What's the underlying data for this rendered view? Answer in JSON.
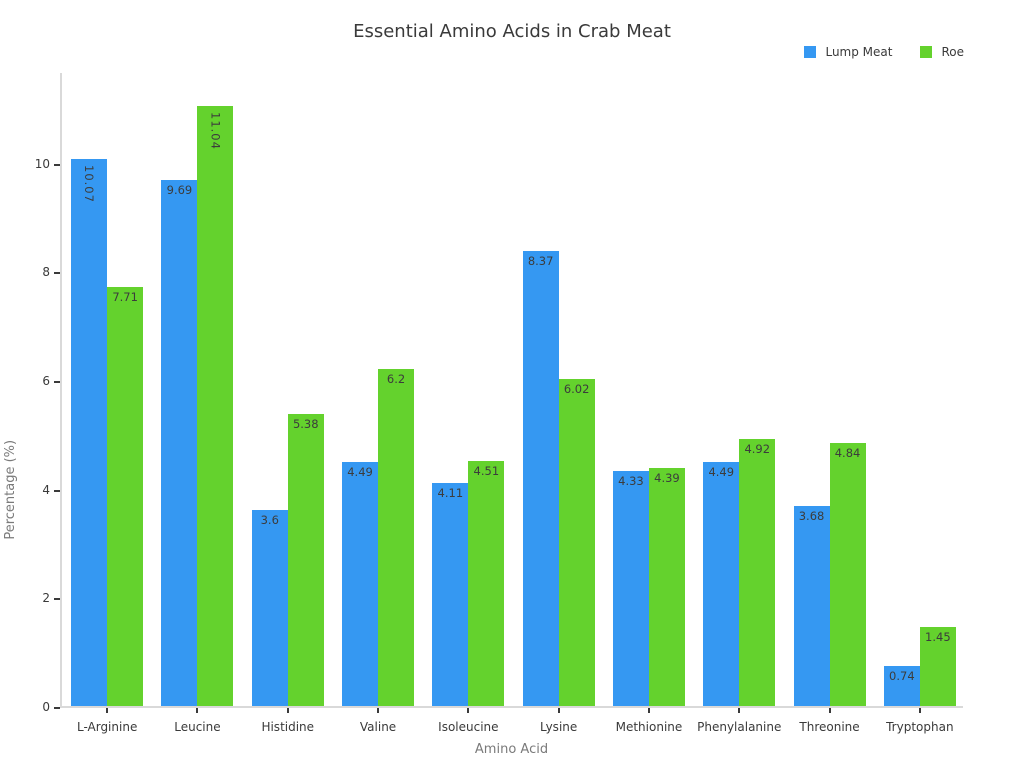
{
  "chart_data": {
    "type": "bar",
    "title": "Essential Amino Acids in Crab Meat",
    "xlabel": "Amino Acid",
    "ylabel": "Percentage (%)",
    "categories": [
      "L-Arginine",
      "Leucine",
      "Histidine",
      "Valine",
      "Isoleucine",
      "Lysine",
      "Methionine",
      "Phenylalanine",
      "Threonine",
      "Tryptophan"
    ],
    "series": [
      {
        "name": "Lump Meat",
        "color": "#3598f2",
        "values": [
          10.07,
          9.69,
          3.6,
          4.49,
          4.11,
          8.37,
          4.33,
          4.49,
          3.68,
          0.74
        ]
      },
      {
        "name": "Roe",
        "color": "#64d22d",
        "values": [
          7.71,
          11.04,
          5.38,
          6.2,
          4.51,
          6.02,
          4.39,
          4.92,
          4.84,
          1.45
        ]
      }
    ],
    "yticks": [
      0,
      2,
      4,
      6,
      8,
      10
    ],
    "ylim": [
      0,
      11.69
    ],
    "bar_value_labels": true,
    "grid": false,
    "legend_position": "top-right"
  }
}
